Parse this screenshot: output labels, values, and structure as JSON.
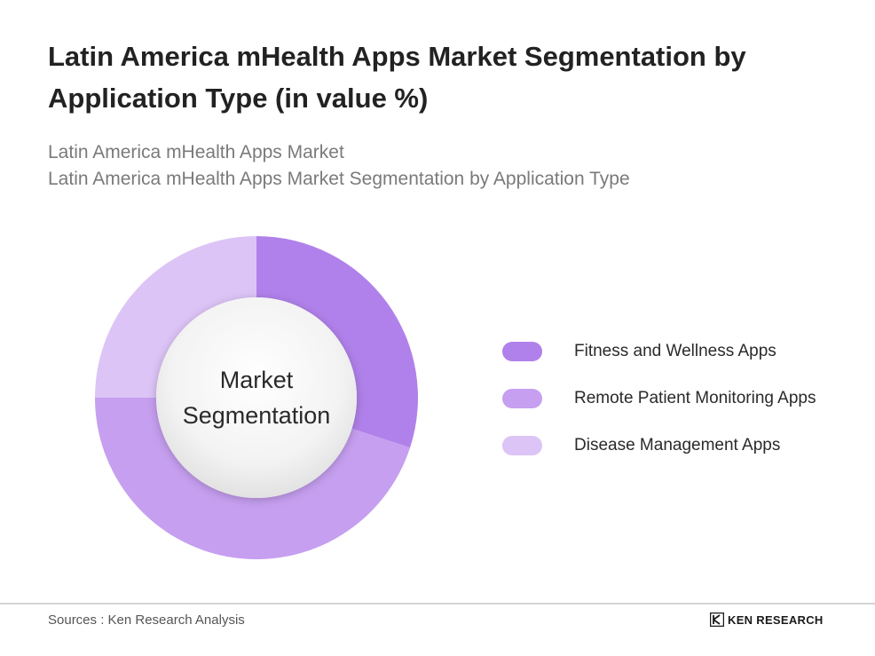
{
  "title": "Latin America mHealth Apps Market Segmentation by Application Type (in value %)",
  "subtitle_lines": [
    "Latin America mHealth Apps Market",
    "Latin America mHealth Apps Market Segmentation by Application Type"
  ],
  "center_label_lines": [
    "Market",
    "Segmentation"
  ],
  "chart_data": {
    "type": "pie",
    "variant": "donut",
    "categories": [
      "Fitness and Wellness Apps",
      "Remote Patient Monitoring Apps",
      "Disease Management Apps"
    ],
    "values": [
      30,
      45,
      25
    ],
    "unit": "%",
    "colors": [
      "#b081ea",
      "#c69ff0",
      "#dcc4f6"
    ],
    "legend_position": "right",
    "start_angle_degrees": 0,
    "direction": "clockwise"
  },
  "footer": {
    "source": "Sources : Ken Research Analysis",
    "logo_text": "KEN RESEARCH"
  }
}
